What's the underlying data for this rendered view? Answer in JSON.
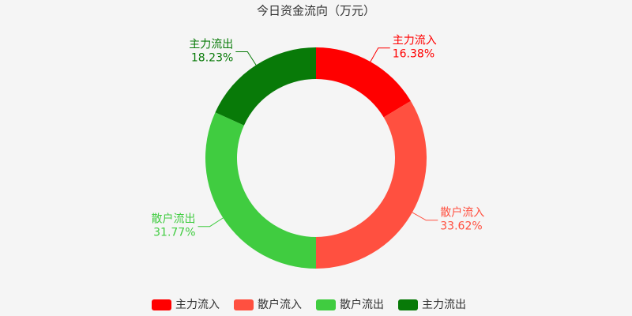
{
  "chart_data": {
    "type": "pie",
    "title": "今日资金流向（万元）",
    "categories": [
      "主力流入",
      "散户流入",
      "散户流出",
      "主力流出"
    ],
    "values": [
      16.38,
      33.62,
      31.77,
      18.23
    ],
    "value_labels": [
      "16.38%",
      "33.62%",
      "31.77%",
      "18.23%"
    ],
    "colors": [
      "#ff0000",
      "#ff5040",
      "#40cc40",
      "#087a08"
    ],
    "donut": true,
    "legend": "bottom"
  }
}
